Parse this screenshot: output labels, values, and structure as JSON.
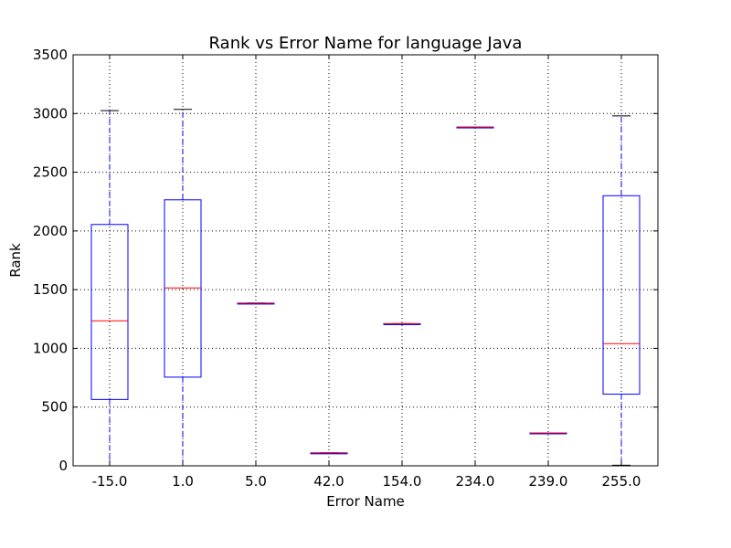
{
  "chart_data": {
    "type": "box",
    "title": "Rank vs Error Name for language Java",
    "xlabel": "Error Name",
    "ylabel": "Rank",
    "ylim": [
      0,
      3500
    ],
    "yticks": [
      "0",
      "500",
      "1000",
      "1500",
      "2000",
      "2500",
      "3000",
      "3500"
    ],
    "grid": true,
    "categories": [
      "-15.0",
      "1.0",
      "5.0",
      "42.0",
      "154.0",
      "234.0",
      "239.0",
      "255.0"
    ],
    "boxes": [
      {
        "category": "-15.0",
        "whisker_low": 0,
        "q1": 565,
        "median": 1235,
        "q3": 2055,
        "whisker_high": 3025
      },
      {
        "category": "1.0",
        "whisker_low": 0,
        "q1": 755,
        "median": 1515,
        "q3": 2265,
        "whisker_high": 3035
      },
      {
        "category": "5.0",
        "whisker_low": 1385,
        "q1": 1385,
        "median": 1385,
        "q3": 1385,
        "whisker_high": 1385
      },
      {
        "category": "42.0",
        "whisker_low": 110,
        "q1": 110,
        "median": 110,
        "q3": 110,
        "whisker_high": 110
      },
      {
        "category": "154.0",
        "whisker_low": 1210,
        "q1": 1210,
        "median": 1210,
        "q3": 1210,
        "whisker_high": 1210
      },
      {
        "category": "234.0",
        "whisker_low": 2885,
        "q1": 2885,
        "median": 2885,
        "q3": 2885,
        "whisker_high": 2885
      },
      {
        "category": "239.0",
        "whisker_low": 280,
        "q1": 280,
        "median": 280,
        "q3": 280,
        "whisker_high": 280
      },
      {
        "category": "255.0",
        "whisker_low": 5,
        "q1": 610,
        "median": 1040,
        "q3": 2300,
        "whisker_high": 2980
      }
    ],
    "colors": {
      "box": "#0000ff",
      "median": "#ff0000",
      "whisker": "#0000ff",
      "cap": "#000000",
      "grid": "#000000"
    }
  }
}
